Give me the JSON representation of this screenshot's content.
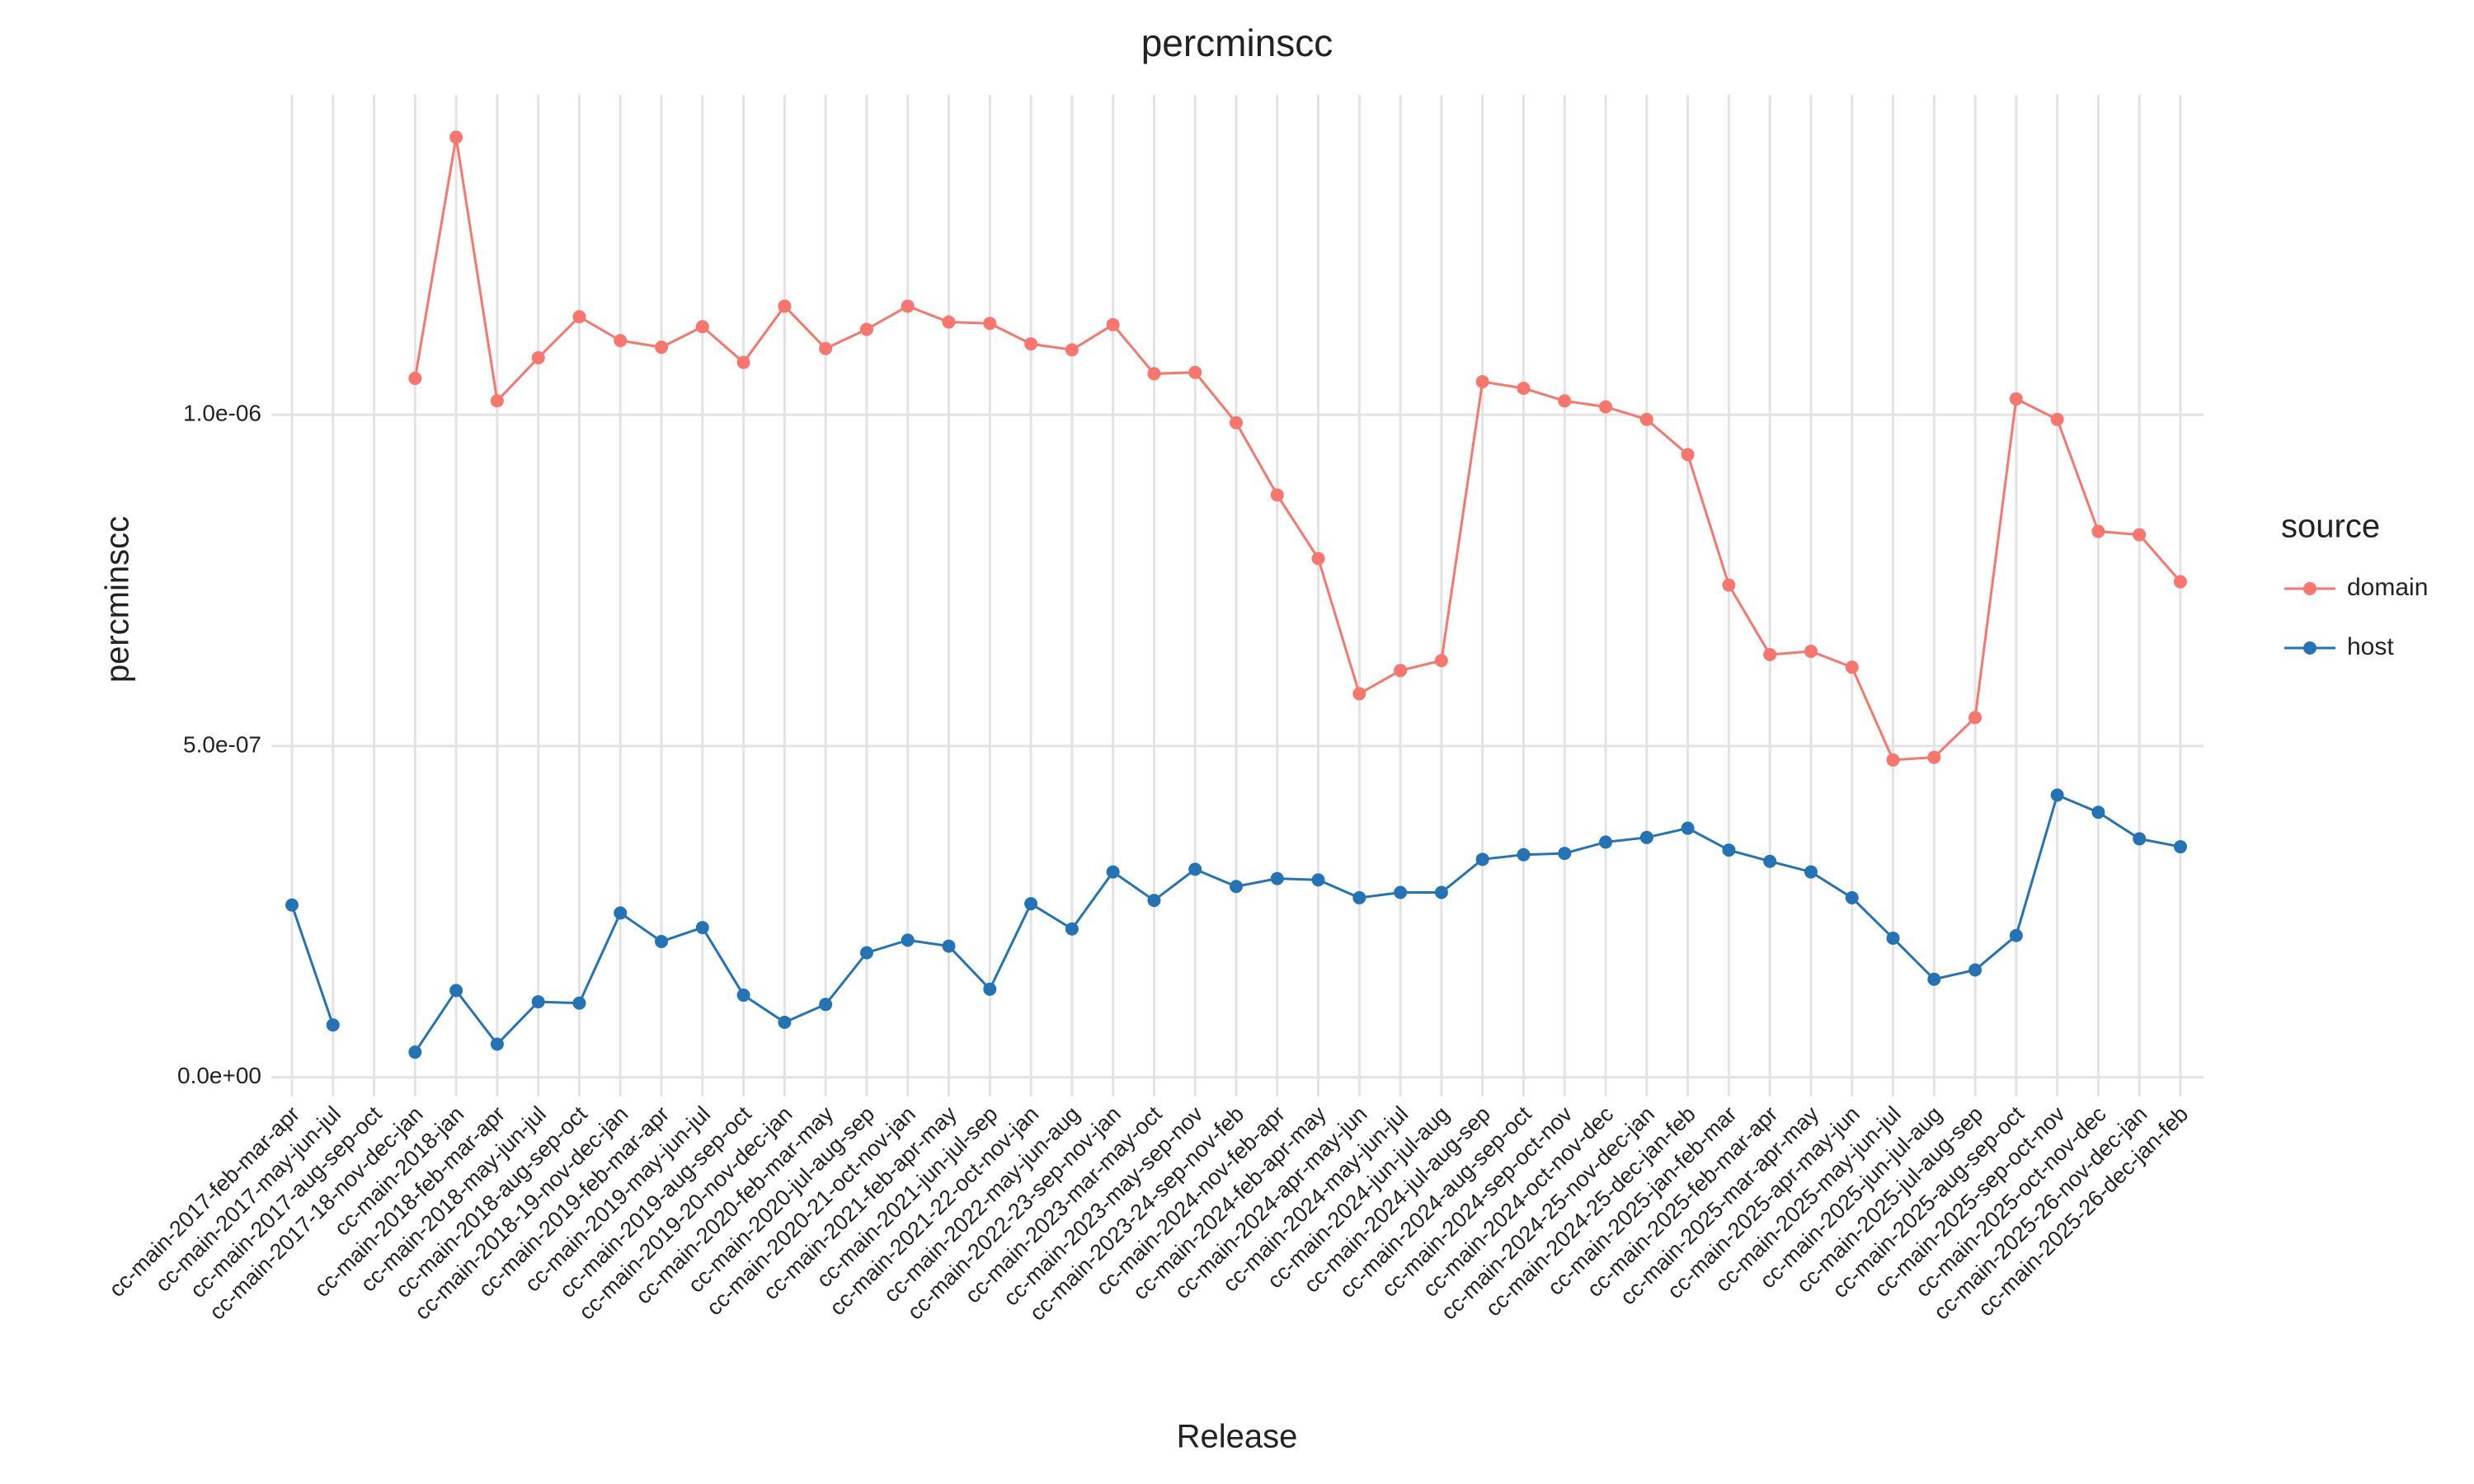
{
  "chart_data": {
    "type": "line",
    "title": "percminscc",
    "x_label": "Release",
    "y_label": "percminscc",
    "categories": [
      "cc-main-2017-feb-mar-apr",
      "cc-main-2017-may-jun-jul",
      "cc-main-2017-aug-sep-oct",
      "cc-main-2017-18-nov-dec-jan",
      "cc-main-2018-jan",
      "cc-main-2018-feb-mar-apr",
      "cc-main-2018-may-jun-jul",
      "cc-main-2018-aug-sep-oct",
      "cc-main-2018-19-nov-dec-jan",
      "cc-main-2019-feb-mar-apr",
      "cc-main-2019-may-jun-jul",
      "cc-main-2019-aug-sep-oct",
      "cc-main-2019-20-nov-dec-jan",
      "cc-main-2020-feb-mar-may",
      "cc-main-2020-jul-aug-sep",
      "cc-main-2020-21-oct-nov-jan",
      "cc-main-2021-feb-apr-may",
      "cc-main-2021-jun-jul-sep",
      "cc-main-2021-22-oct-nov-jan",
      "cc-main-2022-may-jun-aug",
      "cc-main-2022-23-sep-nov-jan",
      "cc-main-2023-mar-may-oct",
      "cc-main-2023-may-sep-nov",
      "cc-main-2023-24-sep-nov-feb",
      "cc-main-2024-nov-feb-apr",
      "cc-main-2024-feb-apr-may",
      "cc-main-2024-apr-may-jun",
      "cc-main-2024-may-jun-jul",
      "cc-main-2024-jun-jul-aug",
      "cc-main-2024-jul-aug-sep",
      "cc-main-2024-aug-sep-oct",
      "cc-main-2024-sep-oct-nov",
      "cc-main-2024-oct-nov-dec",
      "cc-main-2024-25-nov-dec-jan",
      "cc-main-2024-25-dec-jan-feb",
      "cc-main-2025-jan-feb-mar",
      "cc-main-2025-feb-mar-apr",
      "cc-main-2025-mar-apr-may",
      "cc-main-2025-apr-may-jun",
      "cc-main-2025-may-jun-jul",
      "cc-main-2025-jun-jul-aug",
      "cc-main-2025-jul-aug-sep",
      "cc-main-2025-aug-sep-oct",
      "cc-main-2025-sep-oct-nov",
      "cc-main-2025-oct-nov-dec",
      "cc-main-2025-26-nov-dec-jan",
      "cc-main-2025-26-dec-jan-feb"
    ],
    "series": [
      {
        "name": "domain",
        "color": "#f8766d",
        "values": [
          null,
          null,
          null,
          1.055e-06,
          1.419e-06,
          1.021e-06,
          1.086e-06,
          1.148e-06,
          1.112e-06,
          1.102e-06,
          1.133e-06,
          1.079e-06,
          1.164e-06,
          1.1e-06,
          1.129e-06,
          1.164e-06,
          1.14e-06,
          1.138e-06,
          1.107e-06,
          1.098e-06,
          1.136e-06,
          1.062e-06,
          1.064e-06,
          9.88e-07,
          8.79e-07,
          7.83e-07,
          5.79e-07,
          6.14e-07,
          6.29e-07,
          1.05e-06,
          1.04e-06,
          1.021e-06,
          1.012e-06,
          9.93e-07,
          9.4e-07,
          7.43e-07,
          6.38e-07,
          6.43e-07,
          6.19e-07,
          4.79e-07,
          4.83e-07,
          5.43e-07,
          1.024e-06,
          9.93e-07,
          8.24e-07,
          8.19e-07,
          7.48e-07
        ]
      },
      {
        "name": "host",
        "color": "#2474b5",
        "values": [
          2.6e-07,
          7.9e-08,
          null,
          3.8e-08,
          1.31e-07,
          5e-08,
          1.14e-07,
          1.12e-07,
          2.48e-07,
          2.05e-07,
          2.26e-07,
          1.24e-07,
          8.3e-08,
          1.1e-07,
          1.88e-07,
          2.07e-07,
          1.98e-07,
          1.33e-07,
          2.62e-07,
          2.24e-07,
          3.1e-07,
          2.67e-07,
          3.14e-07,
          2.88e-07,
          3e-07,
          2.98e-07,
          2.71e-07,
          2.79e-07,
          2.79e-07,
          3.29e-07,
          3.36e-07,
          3.38e-07,
          3.55e-07,
          3.62e-07,
          3.76e-07,
          3.43e-07,
          3.26e-07,
          3.1e-07,
          2.71e-07,
          2.1e-07,
          1.48e-07,
          1.62e-07,
          2.14e-07,
          4.26e-07,
          4e-07,
          3.6e-07,
          3.48e-07
        ]
      }
    ],
    "ylim": [
      -2.9e-08,
      1.483e-06
    ],
    "yticks": [
      {
        "value": 0,
        "label": "0.0e+00"
      },
      {
        "value": 5e-07,
        "label": "5.0e-07"
      },
      {
        "value": 1e-06,
        "label": "1.0e-06"
      }
    ],
    "grid": true,
    "legend_title": "source",
    "legend": "right"
  }
}
